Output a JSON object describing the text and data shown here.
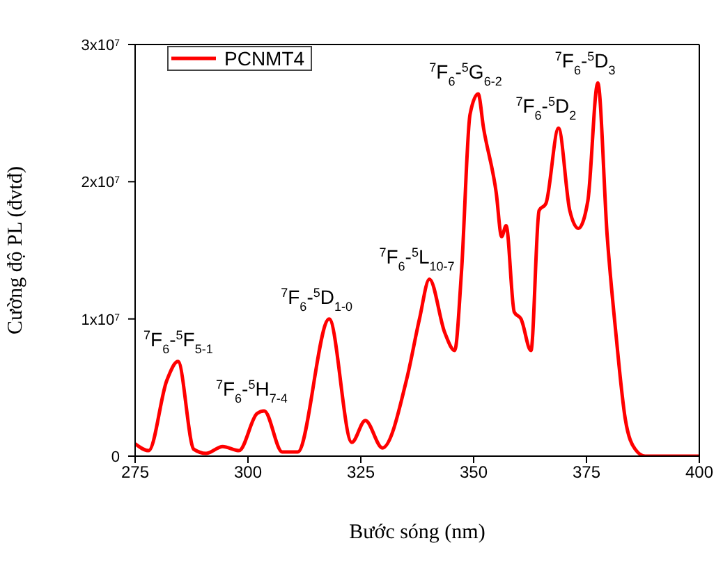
{
  "chart_data": {
    "type": "line",
    "xlabel": "Bước sóng (nm)",
    "ylabel": "Cường độ PL (đvtđ)",
    "xlim": [
      275,
      400
    ],
    "xticks": [
      275,
      300,
      325,
      350,
      375,
      400
    ],
    "ylim": [
      0,
      30000000
    ],
    "yticks": [
      {
        "value": 0,
        "label": "0"
      },
      {
        "value": 10000000,
        "label": "1x10$^{7}$"
      },
      {
        "value": 20000000,
        "label": "2x10$^{7}$"
      },
      {
        "value": 30000000,
        "label": "3x10$^{7}$"
      }
    ],
    "legend": "top left",
    "series": [
      {
        "name": "PCNMT4",
        "color": "#ff0000",
        "x": [
          275,
          278,
          282,
          284.5,
          288,
          290.7,
          294.4,
          298,
          302,
          303.6,
          307.6,
          311,
          318,
          323,
          326,
          329.8,
          335.3,
          338,
          340.2,
          343.6,
          345.8,
          347.3,
          349.2,
          351,
          352.2,
          355,
          356.2,
          357.2,
          359,
          360.5,
          362.7,
          364.5,
          366,
          368.8,
          371.3,
          373.2,
          375.3,
          377.5,
          379.6,
          381.5,
          383.6,
          385.8,
          388,
          392,
          400
        ],
        "values": [
          900000,
          400000,
          5500000,
          6900000,
          500000,
          200000,
          700000,
          400000,
          3100000,
          3300000,
          300000,
          300000,
          10000000,
          1000000,
          2600000,
          600000,
          5800000,
          10000000,
          12900000,
          9000000,
          7700000,
          13400000,
          24900000,
          26400000,
          23900000,
          19200000,
          16000000,
          16800000,
          10500000,
          10000000,
          7700000,
          17900000,
          18400000,
          23900000,
          17900000,
          16600000,
          18600000,
          27200000,
          16000000,
          9000000,
          2700000,
          500000,
          0,
          0,
          0
        ]
      }
    ],
    "annotations": [
      {
        "text": "$^{7}$F$_{6}$-$^{5}$F$_{5-1}$",
        "x": 284.5,
        "y": 6900000
      },
      {
        "text": "$^{7}$F$_{6}$-$^{5}$H$_{7-4}$",
        "x": 303.6,
        "y": 3300000
      },
      {
        "text": "$^{7}$F$_{6}$-$^{5}$D$_{1-0}$",
        "x": 318,
        "y": 10000000
      },
      {
        "text": "$^{7}$F$_{6}$-$^{5}$L$_{10-7}$",
        "x": 340.2,
        "y": 12900000
      },
      {
        "text": "$^{7}$F$_{6}$-$^{5}$G$_{6-2}$",
        "x": 351,
        "y": 26400000
      },
      {
        "text": "$^{7}$F$_{6}$-$^{5}$D$_{2}$",
        "x": 368.8,
        "y": 23900000
      },
      {
        "text": "$^{7}$F$_{6}$-$^{5}$D$_{3}$",
        "x": 377.5,
        "y": 27200000
      }
    ]
  }
}
